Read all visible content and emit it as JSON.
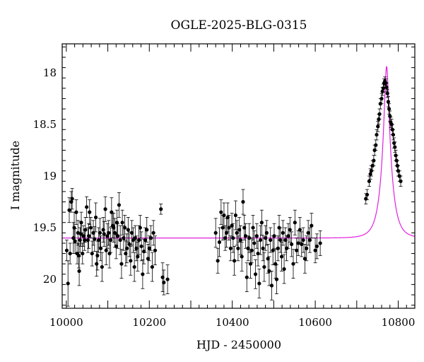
{
  "chart_data": {
    "type": "scatter",
    "title": "OGLE-2025-BLG-0315",
    "xlabel": "HJD - 2450000",
    "ylabel": "I magnitude",
    "xlim": [
      9990,
      10840
    ],
    "ylim": [
      20.28,
      17.72
    ],
    "y_inverted": true,
    "x_ticks": [
      10000,
      10200,
      10400,
      10600,
      10800
    ],
    "y_ticks": [
      18,
      18.5,
      19,
      19.5,
      20
    ],
    "x_tick_labels": [
      "10000",
      "10200",
      "10400",
      "10600",
      "10800"
    ],
    "y_tick_labels": [
      "18",
      "18.5",
      "19",
      "19.5",
      "20"
    ],
    "model": {
      "color": "#e020e0",
      "baseline_mag": 19.6,
      "t0": 10772,
      "tE": 22,
      "u0": 0.22
    },
    "series": [
      {
        "points": [
          [
            10001,
            19.72,
            0.1
          ],
          [
            10004,
            20.04,
            0.22
          ],
          [
            10007,
            19.33,
            0.12
          ],
          [
            10009,
            19.75,
            0.1
          ],
          [
            10012,
            19.25,
            0.1
          ],
          [
            10014,
            19.22,
            0.1
          ],
          [
            10017,
            19.6,
            0.15
          ],
          [
            10019,
            19.5,
            0.15
          ],
          [
            10021,
            19.63,
            0.12
          ],
          [
            10024,
            19.35,
            0.12
          ],
          [
            10026,
            19.75,
            0.1
          ],
          [
            10028,
            19.55,
            0.12
          ],
          [
            10030,
            19.77,
            0.12
          ],
          [
            10031,
            19.92,
            0.14
          ],
          [
            10033,
            19.62,
            0.12
          ],
          [
            10035,
            19.56,
            0.12
          ],
          [
            10036,
            19.45,
            0.1
          ],
          [
            10039,
            19.75,
            0.1
          ],
          [
            10041,
            19.58,
            0.1
          ],
          [
            10044,
            19.62,
            0.1
          ],
          [
            10046,
            19.52,
            0.12
          ],
          [
            10049,
            19.3,
            0.1
          ],
          [
            10052,
            19.62,
            0.12
          ],
          [
            10054,
            19.58,
            0.12
          ],
          [
            10056,
            19.35,
            0.12
          ],
          [
            10059,
            19.5,
            0.1
          ],
          [
            10062,
            19.75,
            0.12
          ],
          [
            10065,
            19.55,
            0.12
          ],
          [
            10068,
            19.61,
            0.12
          ],
          [
            10071,
            19.4,
            0.14
          ],
          [
            10073,
            19.85,
            0.12
          ],
          [
            10075,
            19.77,
            0.14
          ],
          [
            10078,
            19.62,
            0.12
          ],
          [
            10081,
            19.55,
            0.14
          ],
          [
            10083,
            19.7,
            0.12
          ],
          [
            10086,
            19.88,
            0.14
          ],
          [
            10089,
            19.52,
            0.12
          ],
          [
            10091,
            19.56,
            0.12
          ],
          [
            10094,
            19.32,
            0.12
          ],
          [
            10096,
            19.72,
            0.14
          ],
          [
            10099,
            19.58,
            0.12
          ],
          [
            10102,
            19.55,
            0.12
          ],
          [
            10104,
            19.75,
            0.14
          ],
          [
            10107,
            19.62,
            0.12
          ],
          [
            10109,
            19.35,
            0.14
          ],
          [
            10112,
            19.48,
            0.12
          ],
          [
            10114,
            19.5,
            0.14
          ],
          [
            10117,
            19.55,
            0.14
          ],
          [
            10120,
            19.68,
            0.12
          ],
          [
            10122,
            19.45,
            0.12
          ],
          [
            10124,
            19.58,
            0.12
          ],
          [
            10127,
            19.28,
            0.12
          ],
          [
            10130,
            19.62,
            0.14
          ],
          [
            10133,
            19.85,
            0.14
          ],
          [
            10135,
            19.45,
            0.12
          ],
          [
            10138,
            19.6,
            0.12
          ],
          [
            10141,
            19.5,
            0.12
          ],
          [
            10143,
            19.75,
            0.12
          ],
          [
            10146,
            19.7,
            0.14
          ],
          [
            10149,
            19.52,
            0.12
          ],
          [
            10152,
            19.66,
            0.12
          ],
          [
            10155,
            19.82,
            0.14
          ],
          [
            10158,
            19.55,
            0.12
          ],
          [
            10161,
            19.62,
            0.12
          ],
          [
            10164,
            19.88,
            0.14
          ],
          [
            10166,
            19.6,
            0.12
          ],
          [
            10169,
            19.7,
            0.12
          ],
          [
            10172,
            19.78,
            0.14
          ],
          [
            10175,
            19.62,
            0.14
          ],
          [
            10178,
            19.5,
            0.12
          ],
          [
            10181,
            19.68,
            0.14
          ],
          [
            10184,
            19.95,
            0.14
          ],
          [
            10187,
            19.73,
            0.12
          ],
          [
            10190,
            19.62,
            0.12
          ],
          [
            10194,
            19.52,
            0.12
          ],
          [
            10197,
            19.8,
            0.14
          ],
          [
            10200,
            19.7,
            0.12
          ],
          [
            10204,
            19.6,
            0.12
          ],
          [
            10207,
            19.88,
            0.14
          ],
          [
            10210,
            19.55,
            0.12
          ],
          [
            10214,
            19.72,
            0.14
          ],
          [
            10228,
            19.32,
            0.05
          ],
          [
            10232,
            19.98,
            0.14
          ],
          [
            10235,
            20.03,
            0.12
          ],
          [
            10244,
            20.0,
            0.14
          ],
          [
            10360,
            19.55,
            0.14
          ],
          [
            10365,
            19.82,
            0.12
          ],
          [
            10369,
            19.64,
            0.14
          ],
          [
            10373,
            19.35,
            0.12
          ],
          [
            10377,
            19.5,
            0.12
          ],
          [
            10380,
            19.38,
            0.12
          ],
          [
            10383,
            19.6,
            0.12
          ],
          [
            10386,
            19.55,
            0.14
          ],
          [
            10389,
            19.4,
            0.14
          ],
          [
            10392,
            19.5,
            0.12
          ],
          [
            10396,
            19.7,
            0.12
          ],
          [
            10399,
            19.48,
            0.12
          ],
          [
            10402,
            19.6,
            0.14
          ],
          [
            10405,
            19.82,
            0.14
          ],
          [
            10408,
            19.38,
            0.14
          ],
          [
            10411,
            19.55,
            0.12
          ],
          [
            10414,
            19.7,
            0.12
          ],
          [
            10417,
            19.52,
            0.12
          ],
          [
            10420,
            19.62,
            0.14
          ],
          [
            10423,
            19.78,
            0.14
          ],
          [
            10426,
            19.25,
            0.12
          ],
          [
            10429,
            19.5,
            0.12
          ],
          [
            10432,
            19.58,
            0.12
          ],
          [
            10435,
            19.98,
            0.14
          ],
          [
            10438,
            19.7,
            0.12
          ],
          [
            10441,
            19.6,
            0.14
          ],
          [
            10444,
            19.85,
            0.14
          ],
          [
            10447,
            19.72,
            0.12
          ],
          [
            10450,
            19.5,
            0.12
          ],
          [
            10453,
            19.65,
            0.12
          ],
          [
            10456,
            19.95,
            0.14
          ],
          [
            10459,
            19.58,
            0.12
          ],
          [
            10462,
            19.75,
            0.12
          ],
          [
            10465,
            20.04,
            0.14
          ],
          [
            10468,
            19.62,
            0.14
          ],
          [
            10471,
            19.45,
            0.12
          ],
          [
            10474,
            19.7,
            0.12
          ],
          [
            10477,
            19.88,
            0.14
          ],
          [
            10480,
            19.6,
            0.12
          ],
          [
            10483,
            19.55,
            0.12
          ],
          [
            10486,
            19.8,
            0.14
          ],
          [
            10489,
            19.92,
            0.14
          ],
          [
            10492,
            19.62,
            0.12
          ],
          [
            10495,
            20.06,
            0.14
          ],
          [
            10498,
            19.72,
            0.14
          ],
          [
            10501,
            19.58,
            0.12
          ],
          [
            10504,
            19.85,
            0.14
          ],
          [
            10507,
            20.0,
            0.14
          ],
          [
            10510,
            19.7,
            0.12
          ],
          [
            10513,
            19.5,
            0.12
          ],
          [
            10516,
            19.62,
            0.12
          ],
          [
            10519,
            19.78,
            0.14
          ],
          [
            10522,
            19.55,
            0.12
          ],
          [
            10525,
            19.9,
            0.14
          ],
          [
            10528,
            19.62,
            0.12
          ],
          [
            10531,
            19.7,
            0.12
          ],
          [
            10535,
            19.58,
            0.12
          ],
          [
            10539,
            19.52,
            0.12
          ],
          [
            10543,
            19.66,
            0.12
          ],
          [
            10547,
            19.85,
            0.14
          ],
          [
            10551,
            19.45,
            0.12
          ],
          [
            10555,
            19.72,
            0.12
          ],
          [
            10559,
            19.65,
            0.12
          ],
          [
            10563,
            19.52,
            0.12
          ],
          [
            10567,
            19.66,
            0.12
          ],
          [
            10571,
            19.62,
            0.12
          ],
          [
            10575,
            19.8,
            0.14
          ],
          [
            10579,
            19.7,
            0.12
          ],
          [
            10583,
            19.55,
            0.12
          ],
          [
            10587,
            19.62,
            0.12
          ],
          [
            10591,
            19.48,
            0.12
          ],
          [
            10600,
            19.72,
            0.12
          ],
          [
            10604,
            19.68,
            0.12
          ],
          [
            10612,
            19.65,
            0.12
          ],
          [
            10722,
            19.22,
            0.05
          ],
          [
            10725,
            19.18,
            0.05
          ],
          [
            10730,
            19.05,
            0.05
          ],
          [
            10733,
            18.98,
            0.05
          ],
          [
            10735,
            18.95,
            0.05
          ],
          [
            10738,
            18.9,
            0.05
          ],
          [
            10741,
            18.85,
            0.05
          ],
          [
            10743,
            18.75,
            0.05
          ],
          [
            10746,
            18.7,
            0.05
          ],
          [
            10748,
            18.6,
            0.05
          ],
          [
            10751,
            18.52,
            0.05
          ],
          [
            10753,
            18.45,
            0.05
          ],
          [
            10755,
            18.4,
            0.05
          ],
          [
            10757,
            18.3,
            0.05
          ],
          [
            10760,
            18.25,
            0.05
          ],
          [
            10762,
            18.18,
            0.04
          ],
          [
            10764,
            18.15,
            0.04
          ],
          [
            10766,
            18.1,
            0.04
          ],
          [
            10768,
            18.08,
            0.04
          ],
          [
            10770,
            18.1,
            0.04
          ],
          [
            10772,
            18.14,
            0.04
          ],
          [
            10774,
            18.2,
            0.04
          ],
          [
            10776,
            18.28,
            0.05
          ],
          [
            10778,
            18.35,
            0.05
          ],
          [
            10780,
            18.42,
            0.05
          ],
          [
            10782,
            18.48,
            0.05
          ],
          [
            10784,
            18.5,
            0.05
          ],
          [
            10786,
            18.55,
            0.05
          ],
          [
            10788,
            18.6,
            0.05
          ],
          [
            10790,
            18.68,
            0.05
          ],
          [
            10792,
            18.72,
            0.05
          ],
          [
            10794,
            18.8,
            0.05
          ],
          [
            10796,
            18.85,
            0.05
          ],
          [
            10798,
            18.9,
            0.05
          ],
          [
            10800,
            18.95,
            0.05
          ],
          [
            10803,
            19.0,
            0.05
          ],
          [
            10806,
            19.05,
            0.05
          ]
        ]
      }
    ]
  }
}
